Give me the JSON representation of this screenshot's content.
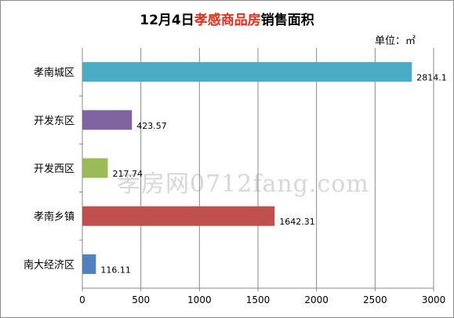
{
  "chart_data": {
    "type": "bar",
    "orientation": "horizontal",
    "title_parts": [
      "12月4日",
      "孝感商品房",
      "销售面积"
    ],
    "unit": "单位：㎡",
    "categories": [
      "孝南城区",
      "开发东区",
      "开发西区",
      "孝南乡镇",
      "南大经济区"
    ],
    "values": [
      2814.1,
      423.57,
      217.74,
      1642.31,
      116.11
    ],
    "value_labels": [
      "2814.1",
      "423.57",
      "217.74",
      "1642.31",
      "116.11"
    ],
    "colors": [
      "#4bacc6",
      "#8064a2",
      "#9bbb59",
      "#c0504d",
      "#4f81bd"
    ],
    "xlim": [
      0,
      3000
    ],
    "xticks": [
      0,
      500,
      1000,
      1500,
      2000,
      2500,
      3000
    ],
    "grid": true,
    "legend": "none"
  },
  "watermark": "孝房网0712fang.com"
}
